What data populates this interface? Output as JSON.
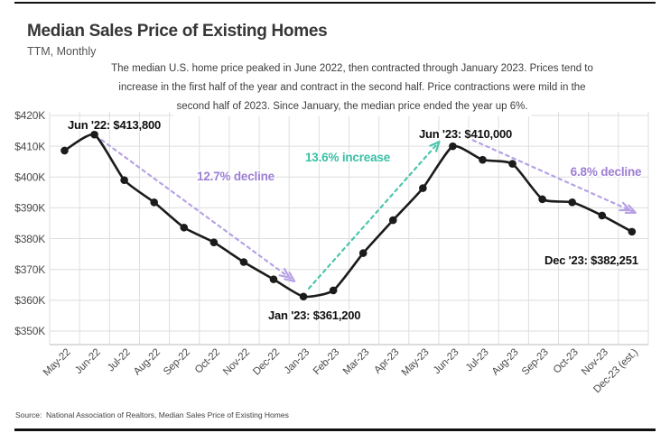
{
  "page": {
    "title": "Median Sales Price of Existing Homes",
    "subtitle": "TTM, Monthly",
    "description_lines": [
      "The median U.S. home price peaked in June 2022, then contracted through January 2023. Prices tend to",
      "increase in the first half of the year and contract in the second half. Price contractions were mild in the",
      "second half of 2023. Since January, the median price ended the year up 6%."
    ],
    "source": "Source:  National Association of Realtors, Median Sales Price of Existing Homes"
  },
  "colors": {
    "line": "#1b1b1b",
    "grid": "#dedede",
    "axis_line": "#c8c8c8",
    "axis_text": "#4a4a4a",
    "purple_text": "#9c7ed4",
    "purple_arrow": "#b7a2e4",
    "teal_text": "#3bbfa5",
    "teal_arrow": "#4cc5ab",
    "rule": "#101010"
  },
  "chart_data": {
    "type": "line",
    "title": "Median Sales Price of Existing Homes",
    "xlabel": "",
    "ylabel": "",
    "x": [
      "May-22",
      "Jun-22",
      "Jul-22",
      "Aug-22",
      "Sep-22",
      "Oct-22",
      "Nov-22",
      "Dec-22",
      "Jan-23",
      "Feb-23",
      "Mar-23",
      "Apr-23",
      "May-23",
      "Jun-23",
      "Jul-23",
      "Aug-23",
      "Sep-23",
      "Oct-23",
      "Nov-23",
      "Dec-23 (est.)"
    ],
    "values": [
      408600,
      413800,
      399000,
      391800,
      383600,
      378800,
      372400,
      366800,
      361200,
      363200,
      375300,
      386000,
      396400,
      410000,
      405600,
      404300,
      392800,
      391800,
      387500,
      382251
    ],
    "ylim": [
      350000,
      420000
    ],
    "yticks": [
      {
        "label": "$420K",
        "value": 420000
      },
      {
        "label": "$410K",
        "value": 410000
      },
      {
        "label": "$400K",
        "value": 400000
      },
      {
        "label": "$390K",
        "value": 390000
      },
      {
        "label": "$380K",
        "value": 380000
      },
      {
        "label": "$370K",
        "value": 370000
      },
      {
        "label": "$360K",
        "value": 360000
      },
      {
        "label": "$350K",
        "value": 350000
      }
    ],
    "grid": true,
    "x_tick_rotation": 45,
    "point_labels": [
      {
        "id": "jun22",
        "text": "Jun '22: $413,800",
        "x": "Jun-22",
        "value": 413800
      },
      {
        "id": "jan23",
        "text": "Jan '23: $361,200",
        "x": "Jan-23",
        "value": 361200
      },
      {
        "id": "jun23",
        "text": "Jun '23: $410,000",
        "x": "Jun-23",
        "value": 410000
      },
      {
        "id": "dec23",
        "text": "Dec '23: $382,251",
        "x": "Dec-23 (est.)",
        "value": 382251
      }
    ],
    "trend_annotations": [
      {
        "id": "decline1",
        "text": "12.7% decline",
        "color_key": "purple",
        "from": "Jun-22",
        "to": "Jan-23"
      },
      {
        "id": "increase1",
        "text": "13.6% increase",
        "color_key": "teal",
        "from": "Jan-23",
        "to": "Jun-23"
      },
      {
        "id": "decline2",
        "text": "6.8% decline",
        "color_key": "purple",
        "from": "Jun-23",
        "to": "Dec-23 (est.)"
      }
    ]
  }
}
